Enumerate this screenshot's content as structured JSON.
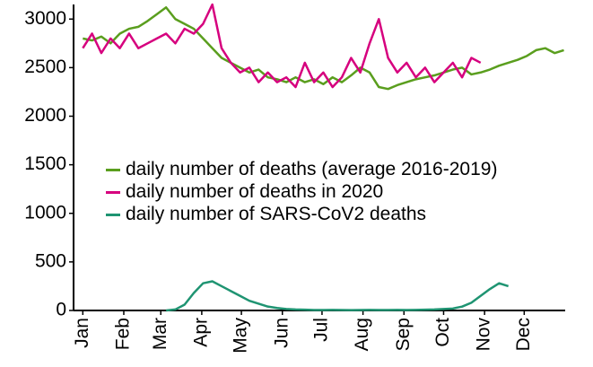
{
  "chart_data": {
    "type": "line",
    "x": [
      1,
      8,
      15,
      22,
      29,
      36,
      43,
      50,
      57,
      64,
      71,
      78,
      85,
      92,
      99,
      106,
      113,
      120,
      127,
      134,
      141,
      148,
      155,
      162,
      169,
      176,
      183,
      190,
      197,
      204,
      211,
      218,
      225,
      232,
      239,
      246,
      253,
      260,
      267,
      274,
      281,
      288,
      295,
      302,
      309,
      316,
      323,
      330,
      337,
      344,
      351,
      358,
      365
    ],
    "xlim": [
      -6,
      366
    ],
    "xticks": [
      {
        "value": 1,
        "label": "Jan"
      },
      {
        "value": 32,
        "label": "Feb"
      },
      {
        "value": 60,
        "label": "Mar"
      },
      {
        "value": 91,
        "label": "Apr"
      },
      {
        "value": 121,
        "label": "May"
      },
      {
        "value": 152,
        "label": "Jun"
      },
      {
        "value": 182,
        "label": "Jul"
      },
      {
        "value": 213,
        "label": "Aug"
      },
      {
        "value": 244,
        "label": "Sep"
      },
      {
        "value": 274,
        "label": "Oct"
      },
      {
        "value": 305,
        "label": "Nov"
      },
      {
        "value": 335,
        "label": "Dec"
      }
    ],
    "ylim": [
      0,
      3150
    ],
    "yticks": [
      0,
      500,
      1000,
      1500,
      2000,
      2500,
      3000
    ],
    "grid": false,
    "legend": "center-left",
    "series": [
      {
        "name": "daily number of deaths (average 2016-2019)",
        "color": "#5a9e1e",
        "values": [
          2800,
          2780,
          2820,
          2750,
          2850,
          2900,
          2920,
          2980,
          3050,
          3120,
          3000,
          2950,
          2900,
          2800,
          2700,
          2600,
          2550,
          2500,
          2450,
          2480,
          2400,
          2380,
          2350,
          2400,
          2350,
          2380,
          2330,
          2400,
          2350,
          2420,
          2500,
          2450,
          2300,
          2280,
          2320,
          2350,
          2380,
          2400,
          2420,
          2450,
          2480,
          2500,
          2430,
          2450,
          2480,
          2520,
          2550,
          2580,
          2620,
          2680,
          2700,
          2650,
          2680
        ]
      },
      {
        "name": "daily number of deaths in 2020",
        "color": "#d6007e",
        "values": [
          2700,
          2850,
          2650,
          2800,
          2700,
          2850,
          2700,
          2750,
          2800,
          2850,
          2750,
          2900,
          2850,
          2950,
          3150,
          2700,
          2550,
          2450,
          2500,
          2350,
          2450,
          2350,
          2400,
          2300,
          2550,
          2350,
          2450,
          2300,
          2400,
          2600,
          2450,
          2750,
          3000,
          2600,
          2450,
          2550,
          2400,
          2500,
          2350,
          2450,
          2550,
          2400,
          2600,
          2550,
          null,
          null,
          null,
          null,
          null,
          null,
          null,
          null,
          null
        ]
      },
      {
        "name": "daily number of SARS-CoV2 deaths",
        "color": "#1f9472",
        "values": [
          null,
          null,
          null,
          null,
          null,
          null,
          null,
          null,
          null,
          0,
          10,
          60,
          180,
          280,
          300,
          250,
          200,
          150,
          100,
          70,
          40,
          25,
          15,
          10,
          8,
          5,
          5,
          6,
          5,
          4,
          5,
          6,
          5,
          5,
          6,
          5,
          6,
          8,
          10,
          15,
          20,
          40,
          80,
          150,
          220,
          280,
          250,
          null,
          null,
          null,
          null,
          null,
          null
        ]
      }
    ]
  }
}
